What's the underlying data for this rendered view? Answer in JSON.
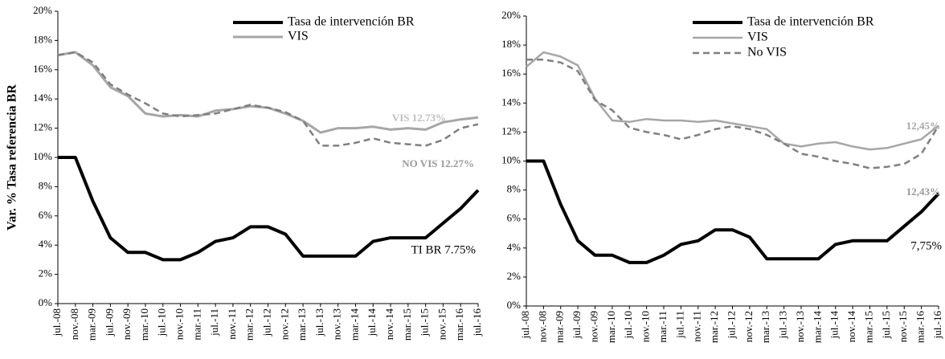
{
  "chart_data": [
    {
      "type": "line",
      "y_label": "Var. % Tasa referencia BR",
      "categories": [
        "jul.-08",
        "nov.-08",
        "mar.-09",
        "jul.-09",
        "nov.-09",
        "mar.-10",
        "jul.-10",
        "nov.-10",
        "mar.-11",
        "jul.-11",
        "nov.-11",
        "mar.-12",
        "jul.-12",
        "nov.-12",
        "mar.-13",
        "jul.-13",
        "nov.-13",
        "mar.-14",
        "jul.-14",
        "nov.-14",
        "mar.-15",
        "jul.-15",
        "nov.-15",
        "mar.-16",
        "jul.-16"
      ],
      "ylim": [
        0,
        20
      ],
      "yticks": [
        {
          "value": 0,
          "label": "0%"
        },
        {
          "value": 2,
          "label": "2%"
        },
        {
          "value": 4,
          "label": "4%"
        },
        {
          "value": 6,
          "label": "6%"
        },
        {
          "value": 8,
          "label": "8%"
        },
        {
          "value": 10,
          "label": "10%"
        },
        {
          "value": 12,
          "label": "12%"
        },
        {
          "value": 14,
          "label": "14%"
        },
        {
          "value": 16,
          "label": "16%"
        },
        {
          "value": 18,
          "label": "18%"
        },
        {
          "value": 20,
          "label": "20%"
        }
      ],
      "legend": "top-right",
      "series": [
        {
          "name": "Tasa de intervención BR",
          "color": "#000000",
          "width": 4,
          "values": [
            10,
            10,
            7,
            4.5,
            3.5,
            3.5,
            3,
            3,
            3.5,
            4.25,
            4.5,
            5.25,
            5.25,
            4.75,
            3.25,
            3.25,
            3.25,
            3.25,
            4.25,
            4.5,
            4.5,
            4.5,
            5.5,
            6.5,
            7.75
          ]
        },
        {
          "name": "VIS",
          "color": "#a6a6a6",
          "width": 3,
          "values": [
            17,
            17.2,
            16.3,
            14.8,
            14.2,
            13.0,
            12.8,
            12.9,
            12.8,
            13.2,
            13.3,
            13.5,
            13.4,
            13.0,
            12.5,
            11.7,
            12.0,
            12.0,
            12.1,
            11.9,
            12.0,
            11.9,
            12.4,
            12.6,
            12.73
          ]
        },
        {
          "name": null,
          "color": "#7f7f7f",
          "width": 2.5,
          "dash": true,
          "values": [
            17,
            17.2,
            16.5,
            15,
            14.3,
            13.7,
            13.0,
            12.8,
            12.9,
            13.0,
            13.3,
            13.6,
            13.4,
            13.1,
            12.5,
            10.8,
            10.8,
            11.0,
            11.3,
            11.0,
            10.9,
            10.8,
            11.2,
            12.0,
            12.27
          ]
        }
      ],
      "annotations": [
        "VIS  12.73%",
        "NO VIS 12.27%",
        "TI BR 7.75%"
      ]
    },
    {
      "type": "line",
      "categories": [
        "jul.-08",
        "nov.-08",
        "mar.-09",
        "jul.-09",
        "nov.-09",
        "mar.-10",
        "jul.-10",
        "nov.-10",
        "mar.-11",
        "jul.-11",
        "nov.-11",
        "mar.-12",
        "jul.-12",
        "nov.-12",
        "mar.-13",
        "jul.-13",
        "nov.-13",
        "mar.-14",
        "jul.-14",
        "nov.-14",
        "mar.-15",
        "jul.-15",
        "nov.-15",
        "mar.-16",
        "jul.-16"
      ],
      "ylim": [
        0,
        20
      ],
      "yticks": [
        {
          "value": 0,
          "label": "0%"
        },
        {
          "value": 2,
          "label": "2%"
        },
        {
          "value": 4,
          "label": "4%"
        },
        {
          "value": 6,
          "label": "6%"
        },
        {
          "value": 8,
          "label": "8%"
        },
        {
          "value": 10,
          "label": "10%"
        },
        {
          "value": 12,
          "label": "12%"
        },
        {
          "value": 14,
          "label": "14%"
        },
        {
          "value": 16,
          "label": "16%"
        },
        {
          "value": 18,
          "label": "18%"
        },
        {
          "value": 20,
          "label": "20%"
        }
      ],
      "legend": "top-right",
      "series": [
        {
          "name": "Tasa de intervención BR",
          "color": "#000000",
          "width": 4,
          "values": [
            10,
            10,
            7,
            4.5,
            3.5,
            3.5,
            3,
            3,
            3.5,
            4.25,
            4.5,
            5.25,
            5.25,
            4.75,
            3.25,
            3.25,
            3.25,
            3.25,
            4.25,
            4.5,
            4.5,
            4.5,
            5.5,
            6.5,
            7.75
          ]
        },
        {
          "name": "VIS",
          "color": "#a6a6a6",
          "width": 2.5,
          "values": [
            16.5,
            17.5,
            17.2,
            16.6,
            14.3,
            12.8,
            12.7,
            12.9,
            12.8,
            12.8,
            12.7,
            12.8,
            12.6,
            12.4,
            12.2,
            11.2,
            11.0,
            11.2,
            11.3,
            11.0,
            10.8,
            10.9,
            11.2,
            11.5,
            12.45
          ]
        },
        {
          "name": "No VIS",
          "color": "#7f7f7f",
          "width": 2.5,
          "dash": true,
          "values": [
            17,
            17,
            16.8,
            16.2,
            14.2,
            13.5,
            12.3,
            12.0,
            11.8,
            11.5,
            11.8,
            12.2,
            12.4,
            12.2,
            11.8,
            11.2,
            10.5,
            10.3,
            10.0,
            9.8,
            9.5,
            9.6,
            9.8,
            10.5,
            12.43
          ]
        }
      ],
      "annotations": [
        "12,45%",
        "12,43%",
        "7,75%"
      ]
    }
  ]
}
